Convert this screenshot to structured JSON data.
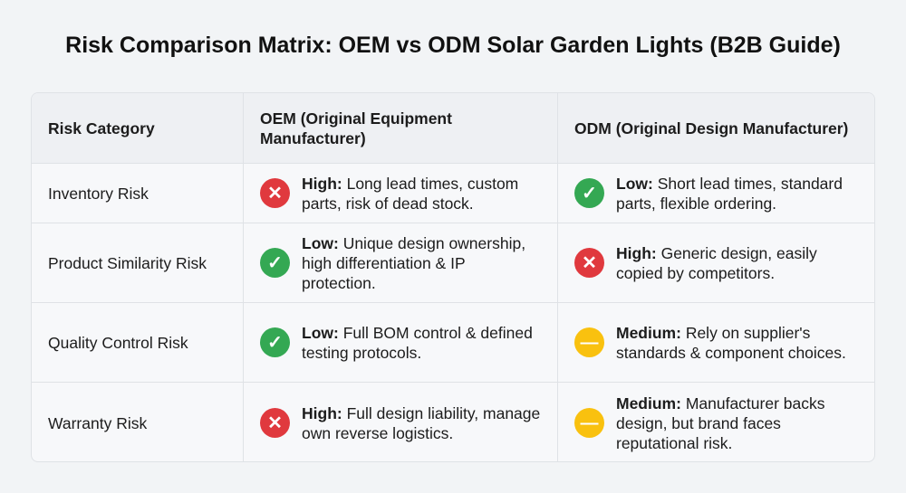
{
  "title": "Risk Comparison Matrix: OEM vs ODM Solar Garden Lights (B2B Guide)",
  "headers": [
    "Risk Category",
    "OEM (Original Equipment Manufacturer)",
    "ODM (Original Design Manufacturer)"
  ],
  "rows": [
    {
      "category": "Inventory Risk",
      "oem": {
        "level": "High:",
        "text": " Long lead times, custom parts, risk of dead stock.",
        "icon": "x-icon"
      },
      "odm": {
        "level": "Low:",
        "text": " Short lead times, standard parts, flexible ordering.",
        "icon": "check-icon"
      }
    },
    {
      "category": "Product Similarity Risk",
      "oem": {
        "level": "Low:",
        "text": " Unique design ownership, high differentiation & IP protection.",
        "icon": "check-icon"
      },
      "odm": {
        "level": "High:",
        "text": " Generic design, easily copied by competitors.",
        "icon": "x-icon"
      }
    },
    {
      "category": "Quality Control Risk",
      "oem": {
        "level": "Low:",
        "text": " Full BOM control & defined testing protocols.",
        "icon": "check-icon"
      },
      "odm": {
        "level": "Medium:",
        "text": " Rely on supplier's standards & component choices.",
        "icon": "minus-icon"
      }
    },
    {
      "category": "Warranty Risk",
      "oem": {
        "level": "High:",
        "text": " Full design liability, manage own reverse logistics.",
        "icon": "x-icon"
      },
      "odm": {
        "level": "Medium:",
        "text": " Manufacturer backs design, but brand faces reputational risk.",
        "icon": "minus-icon"
      }
    }
  ],
  "colors": {
    "high": "#e0393e",
    "low": "#34a853",
    "medium": "#f9c10f"
  }
}
